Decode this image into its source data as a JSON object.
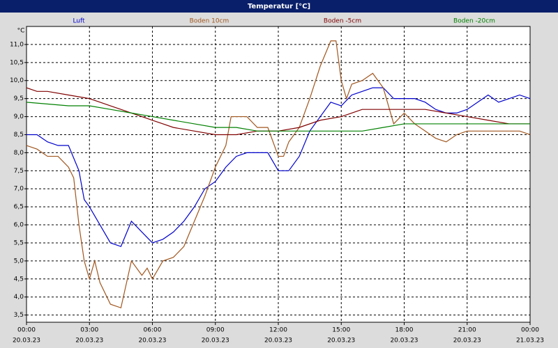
{
  "chart_data": {
    "type": "line",
    "title": "Temperatur [°C]",
    "ylabel": "°C",
    "ylim": [
      3.3,
      11.5
    ],
    "xlim": [
      0,
      24
    ],
    "grid": true,
    "yticks": [
      {
        "value": 3.5,
        "label": "3,5"
      },
      {
        "value": 4.0,
        "label": "4,0"
      },
      {
        "value": 4.5,
        "label": "4,5"
      },
      {
        "value": 5.0,
        "label": "5,0"
      },
      {
        "value": 5.5,
        "label": "5,5"
      },
      {
        "value": 6.0,
        "label": "6,0"
      },
      {
        "value": 6.5,
        "label": "6,5"
      },
      {
        "value": 7.0,
        "label": "7,0"
      },
      {
        "value": 7.5,
        "label": "7,5"
      },
      {
        "value": 8.0,
        "label": "8,0"
      },
      {
        "value": 8.5,
        "label": "8,5"
      },
      {
        "value": 9.0,
        "label": "9,0"
      },
      {
        "value": 9.5,
        "label": "9,5"
      },
      {
        "value": 10.0,
        "label": "10,0"
      },
      {
        "value": 10.5,
        "label": "10,5"
      },
      {
        "value": 11.0,
        "label": "11,0"
      }
    ],
    "xticks": [
      {
        "value": 0,
        "label": "00:00"
      },
      {
        "value": 3,
        "label": "03:00"
      },
      {
        "value": 6,
        "label": "06:00"
      },
      {
        "value": 9,
        "label": "09:00"
      },
      {
        "value": 12,
        "label": "12:00"
      },
      {
        "value": 15,
        "label": "15:00"
      },
      {
        "value": 18,
        "label": "18:00"
      },
      {
        "value": 21,
        "label": "21:00"
      },
      {
        "value": 24,
        "label": "00:00"
      }
    ],
    "xtick_dates": [
      "20.03.23",
      "20.03.23",
      "20.03.23",
      "20.03.23",
      "20.03.23",
      "20.03.23",
      "20.03.23",
      "20.03.23",
      "21.03.23"
    ],
    "series": [
      {
        "name": "Luft",
        "color": "#0000cc",
        "x": [
          0,
          0.5,
          1,
          1.5,
          2,
          2.5,
          2.75,
          3,
          3.5,
          4,
          4.5,
          5,
          5.5,
          6,
          6.5,
          7,
          7.5,
          8,
          8.5,
          9,
          9.5,
          10,
          10.5,
          11,
          11.5,
          12,
          12.5,
          13,
          13.5,
          14,
          14.5,
          15,
          15.5,
          16,
          16.5,
          17,
          17.5,
          18,
          18.5,
          19,
          19.5,
          20,
          20.5,
          21,
          21.5,
          22,
          22.5,
          23,
          23.5,
          24
        ],
        "values": [
          8.5,
          8.5,
          8.3,
          8.2,
          8.2,
          7.5,
          6.7,
          6.5,
          6.0,
          5.5,
          5.4,
          6.1,
          5.8,
          5.5,
          5.6,
          5.8,
          6.1,
          6.5,
          7.0,
          7.2,
          7.6,
          7.9,
          8.0,
          8.0,
          8.0,
          7.5,
          7.5,
          7.9,
          8.6,
          9.0,
          9.4,
          9.3,
          9.6,
          9.7,
          9.8,
          9.8,
          9.5,
          9.5,
          9.5,
          9.4,
          9.2,
          9.1,
          9.1,
          9.2,
          9.4,
          9.6,
          9.4,
          9.5,
          9.6,
          9.5
        ]
      },
      {
        "name": "Boden 10cm",
        "color": "#a0561e",
        "x": [
          0,
          0.5,
          1,
          1.5,
          2,
          2.25,
          2.5,
          2.75,
          3,
          3.25,
          3.5,
          4,
          4.5,
          5,
          5.5,
          5.75,
          6,
          6.5,
          7,
          7.5,
          8,
          8.5,
          9,
          9.5,
          9.75,
          10,
          10.5,
          11,
          11.5,
          12,
          12.25,
          12.5,
          13,
          13.5,
          14,
          14.5,
          14.75,
          15,
          15.25,
          15.5,
          16,
          16.5,
          17,
          17.5,
          18,
          18.5,
          19,
          19.5,
          20,
          20.5,
          21,
          21.5,
          22,
          22.5,
          23,
          23.5,
          24
        ],
        "values": [
          8.2,
          8.1,
          7.9,
          7.9,
          7.6,
          7.3,
          6.0,
          5.0,
          4.5,
          5.0,
          4.4,
          3.8,
          3.7,
          5.0,
          4.6,
          4.8,
          4.5,
          5.0,
          5.1,
          5.4,
          6.1,
          6.8,
          7.6,
          8.2,
          9.0,
          9.0,
          9.0,
          8.7,
          8.7,
          7.9,
          7.9,
          8.3,
          8.7,
          9.5,
          10.4,
          11.1,
          11.1,
          10.0,
          9.5,
          9.9,
          10.0,
          10.2,
          9.8,
          8.8,
          9.1,
          8.8,
          8.6,
          8.4,
          8.3,
          8.5,
          8.6,
          8.6,
          8.6,
          8.6,
          8.6,
          8.6,
          8.5
        ]
      },
      {
        "name": "Boden -5cm",
        "color": "#800000",
        "x": [
          0,
          0.5,
          1,
          2,
          3,
          3.5,
          4,
          4.5,
          5,
          5.5,
          6,
          6.5,
          7,
          8,
          9,
          10,
          11,
          12,
          13,
          14,
          15,
          15.5,
          16,
          18,
          19,
          20,
          21,
          22,
          23,
          24
        ],
        "values": [
          9.8,
          9.7,
          9.7,
          9.6,
          9.5,
          9.4,
          9.3,
          9.2,
          9.1,
          9.0,
          8.9,
          8.8,
          8.7,
          8.6,
          8.5,
          8.5,
          8.6,
          8.6,
          8.7,
          8.9,
          9.0,
          9.1,
          9.2,
          9.2,
          9.2,
          9.1,
          9.0,
          8.9,
          8.8,
          8.8
        ]
      },
      {
        "name": "Boden -20cm",
        "color": "#008000",
        "x": [
          0,
          2,
          3,
          4,
          5,
          6,
          7,
          8,
          9,
          10,
          11,
          13,
          16,
          17,
          18,
          24
        ],
        "values": [
          9.4,
          9.3,
          9.3,
          9.2,
          9.1,
          9.0,
          8.9,
          8.8,
          8.7,
          8.7,
          8.6,
          8.6,
          8.6,
          8.7,
          8.8,
          8.8
        ]
      }
    ]
  }
}
